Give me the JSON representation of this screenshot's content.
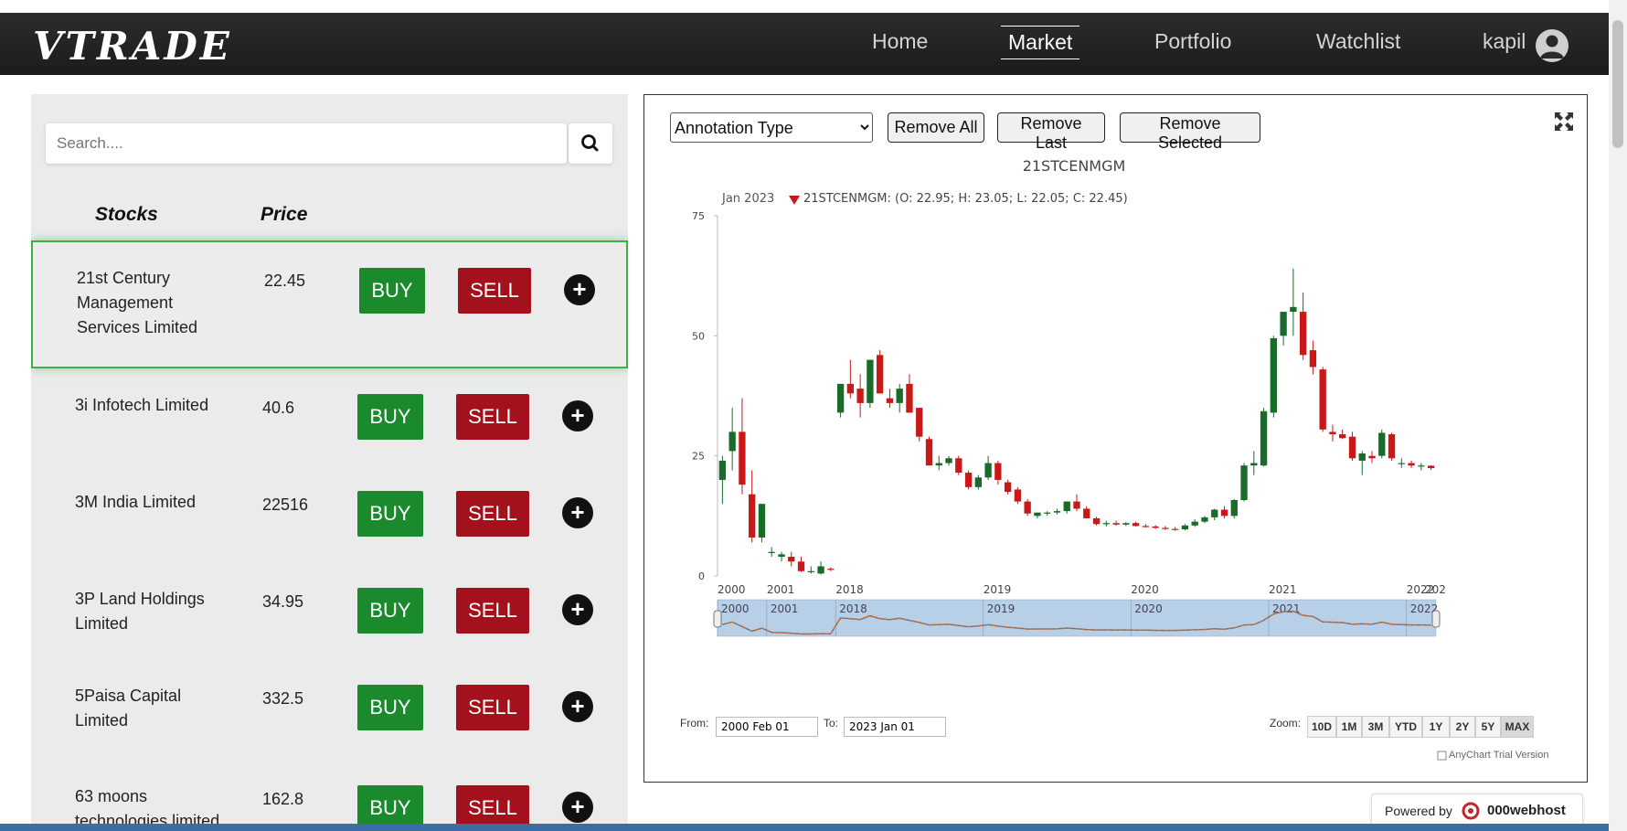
{
  "brand": {
    "logo": "VTRADE"
  },
  "nav": {
    "links": [
      {
        "label": "Home"
      },
      {
        "label": "Market"
      },
      {
        "label": "Portfolio"
      },
      {
        "label": "Watchlist"
      }
    ],
    "user": "kapil"
  },
  "search": {
    "placeholder": "Search...."
  },
  "list": {
    "headers": {
      "stocks": "Stocks",
      "price": "Price"
    },
    "buy_label": "BUY",
    "sell_label": "SELL",
    "add_label": "+",
    "rows": [
      {
        "name": "21st Century Management Services Limited",
        "price": "22.45",
        "selected": true
      },
      {
        "name": "3i Infotech Limited",
        "price": "40.6"
      },
      {
        "name": "3M India Limited",
        "price": "22516"
      },
      {
        "name": "3P Land Holdings Limited",
        "price": "34.95"
      },
      {
        "name": "5Paisa Capital Limited",
        "price": "332.5"
      },
      {
        "name": "63 moons technologies limited",
        "price": "162.8"
      }
    ]
  },
  "chart_controls": {
    "annotation_select": "Annotation Type",
    "remove_all": "Remove All",
    "remove_last": "Remove Last",
    "remove_selected": "Remove Selected"
  },
  "chart_footer": {
    "from_label": "From:",
    "from_value": "2000 Feb 01",
    "to_label": "To:",
    "to_value": "2023 Jan 01",
    "zoom_label": "Zoom:",
    "zoom_buttons": [
      "10D",
      "1M",
      "3M",
      "YTD",
      "1Y",
      "2Y",
      "5Y",
      "MAX"
    ],
    "active_zoom": "MAX",
    "trial": "AnyChart Trial Version"
  },
  "powered_by": {
    "prefix": "Powered by",
    "brand": "000webhost"
  },
  "colors": {
    "up": "#1a6b2a",
    "down": "#c81818",
    "buy": "#1a8a2d",
    "sell": "#a3111c",
    "navbar": "#222222"
  },
  "chart_data": {
    "type": "candlestick",
    "title": "21STCENMGM",
    "legend_date": "Jan 2023",
    "legend_text": "21STCENMGM: (O: 22.95; H: 23.05; L: 22.05; C: 22.45)",
    "ylim": [
      0,
      75
    ],
    "y_ticks": [
      0,
      25,
      50,
      75
    ],
    "x_ticks": [
      "2000",
      "2001",
      "2018",
      "2019",
      "2020",
      "2021",
      "2022",
      "202"
    ],
    "navigator_ticks": [
      "2000",
      "2001",
      "2018",
      "2019",
      "2020",
      "2021",
      "2022"
    ],
    "candles": [
      {
        "o": 20,
        "h": 25,
        "l": 15,
        "c": 24
      },
      {
        "o": 26,
        "h": 35,
        "l": 22,
        "c": 30
      },
      {
        "o": 30,
        "h": 37,
        "l": 17,
        "c": 19
      },
      {
        "o": 17,
        "h": 22,
        "l": 7,
        "c": 8
      },
      {
        "o": 8,
        "h": 15,
        "l": 7,
        "c": 15
      },
      {
        "o": 5,
        "h": 6,
        "l": 4,
        "c": 5
      },
      {
        "o": 4,
        "h": 5,
        "l": 3,
        "c": 4.5
      },
      {
        "o": 4,
        "h": 5,
        "l": 2,
        "c": 3
      },
      {
        "o": 3,
        "h": 4,
        "l": 0.8,
        "c": 1
      },
      {
        "o": 0.8,
        "h": 2,
        "l": 0.5,
        "c": 1
      },
      {
        "o": 0.5,
        "h": 3,
        "l": 0.3,
        "c": 2
      },
      {
        "o": 1.5,
        "h": 1.8,
        "l": 1,
        "c": 1.3
      },
      {
        "o": 34,
        "h": 40,
        "l": 33,
        "c": 40
      },
      {
        "o": 40,
        "h": 45,
        "l": 37,
        "c": 38
      },
      {
        "o": 39,
        "h": 42,
        "l": 33,
        "c": 36
      },
      {
        "o": 36,
        "h": 45,
        "l": 35,
        "c": 45
      },
      {
        "o": 46,
        "h": 47,
        "l": 38,
        "c": 38
      },
      {
        "o": 37,
        "h": 39,
        "l": 35,
        "c": 36
      },
      {
        "o": 36,
        "h": 40,
        "l": 34,
        "c": 39
      },
      {
        "o": 40,
        "h": 42,
        "l": 34,
        "c": 34
      },
      {
        "o": 35,
        "h": 35,
        "l": 28,
        "c": 29
      },
      {
        "o": 28.5,
        "h": 29,
        "l": 23,
        "c": 23
      },
      {
        "o": 23,
        "h": 25,
        "l": 22,
        "c": 23.5
      },
      {
        "o": 23.5,
        "h": 25,
        "l": 23,
        "c": 24.5
      },
      {
        "o": 24.5,
        "h": 25,
        "l": 21,
        "c": 21.5
      },
      {
        "o": 21.5,
        "h": 22,
        "l": 18,
        "c": 18.5
      },
      {
        "o": 18.5,
        "h": 21,
        "l": 18,
        "c": 20.5
      },
      {
        "o": 20.5,
        "h": 25,
        "l": 20,
        "c": 23.5
      },
      {
        "o": 23.5,
        "h": 24,
        "l": 19,
        "c": 20
      },
      {
        "o": 19.5,
        "h": 20,
        "l": 17,
        "c": 17.5
      },
      {
        "o": 18,
        "h": 18.5,
        "l": 15,
        "c": 15.5
      },
      {
        "o": 15.5,
        "h": 16,
        "l": 12.5,
        "c": 13
      },
      {
        "o": 12.5,
        "h": 13,
        "l": 12,
        "c": 13.2
      },
      {
        "o": 13,
        "h": 13.5,
        "l": 12.5,
        "c": 13.2
      },
      {
        "o": 13.2,
        "h": 14,
        "l": 12.8,
        "c": 13.5
      },
      {
        "o": 13.5,
        "h": 15.5,
        "l": 13,
        "c": 15.5
      },
      {
        "o": 15.5,
        "h": 17,
        "l": 13.5,
        "c": 14
      },
      {
        "o": 14,
        "h": 14.5,
        "l": 12,
        "c": 12
      },
      {
        "o": 12,
        "h": 12.3,
        "l": 10.5,
        "c": 10.8
      },
      {
        "o": 10.8,
        "h": 11.5,
        "l": 10.3,
        "c": 11
      },
      {
        "o": 11,
        "h": 11.5,
        "l": 10.5,
        "c": 10.7
      },
      {
        "o": 10.7,
        "h": 11.2,
        "l": 10.4,
        "c": 11
      },
      {
        "o": 11,
        "h": 11.3,
        "l": 10.3,
        "c": 10.4
      },
      {
        "o": 10.4,
        "h": 10.8,
        "l": 10.1,
        "c": 10.3
      },
      {
        "o": 10.3,
        "h": 10.6,
        "l": 9.8,
        "c": 10
      },
      {
        "o": 10,
        "h": 10.4,
        "l": 9.6,
        "c": 9.8
      },
      {
        "o": 9.8,
        "h": 10.2,
        "l": 9.4,
        "c": 9.6
      },
      {
        "o": 9.7,
        "h": 10.8,
        "l": 9.5,
        "c": 10.5
      },
      {
        "o": 10.5,
        "h": 11.8,
        "l": 10.2,
        "c": 11.3
      },
      {
        "o": 11.3,
        "h": 12.5,
        "l": 11,
        "c": 12.2
      },
      {
        "o": 12.2,
        "h": 14,
        "l": 11.6,
        "c": 13.8
      },
      {
        "o": 13.8,
        "h": 14.5,
        "l": 12,
        "c": 12.5
      },
      {
        "o": 12.5,
        "h": 16,
        "l": 12,
        "c": 15.8
      },
      {
        "o": 15.8,
        "h": 23.5,
        "l": 15.5,
        "c": 23
      },
      {
        "o": 23,
        "h": 26,
        "l": 21,
        "c": 23.5
      },
      {
        "o": 23,
        "h": 35,
        "l": 22.8,
        "c": 34.3
      },
      {
        "o": 34,
        "h": 50,
        "l": 33,
        "c": 49.5
      },
      {
        "o": 50,
        "h": 55,
        "l": 48,
        "c": 55
      },
      {
        "o": 55,
        "h": 64,
        "l": 50,
        "c": 56
      },
      {
        "o": 55,
        "h": 59,
        "l": 45,
        "c": 46
      },
      {
        "o": 47,
        "h": 49,
        "l": 42,
        "c": 43.5
      },
      {
        "o": 43,
        "h": 43.5,
        "l": 30,
        "c": 30.5
      },
      {
        "o": 30,
        "h": 31.5,
        "l": 28,
        "c": 29.5
      },
      {
        "o": 29.5,
        "h": 30.5,
        "l": 28.5,
        "c": 28.7
      },
      {
        "o": 29,
        "h": 30,
        "l": 24,
        "c": 24.5
      },
      {
        "o": 24,
        "h": 26,
        "l": 21,
        "c": 25.5
      },
      {
        "o": 25,
        "h": 26,
        "l": 23.5,
        "c": 24.5
      },
      {
        "o": 25,
        "h": 30.5,
        "l": 24.5,
        "c": 29.8
      },
      {
        "o": 29.5,
        "h": 29.8,
        "l": 24,
        "c": 24.5
      },
      {
        "o": 23.5,
        "h": 24.5,
        "l": 22.5,
        "c": 23.5
      },
      {
        "o": 23.5,
        "h": 24,
        "l": 22.5,
        "c": 23
      },
      {
        "o": 23,
        "h": 23.5,
        "l": 22,
        "c": 23
      },
      {
        "o": 22.95,
        "h": 23.05,
        "l": 22.05,
        "c": 22.45
      }
    ]
  }
}
